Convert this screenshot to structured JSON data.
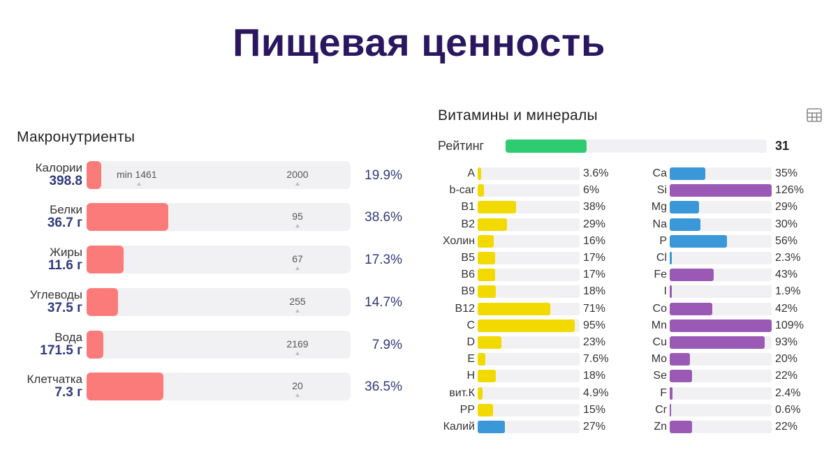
{
  "page": {
    "title": "Пищевая ценность"
  },
  "colors": {
    "title": "#2a1760",
    "macro_fill": "#fb7b7b",
    "track": "#f1f1f3",
    "rating": "#2ecc71",
    "vitamin": "#f2d900",
    "mineral_blue": "#3a97d8",
    "mineral_purple": "#9b59b6",
    "value_text": "#2f3a7a"
  },
  "macros": {
    "title": "Макронутриенты",
    "items": [
      {
        "name": "Калории",
        "value": "398.8",
        "min_label": "min 1461",
        "target": "2000",
        "percent": "19.9%",
        "fraction": 0.055
      },
      {
        "name": "Белки",
        "value": "36.7 г",
        "target": "95",
        "percent": "38.6%",
        "fraction": 0.31
      },
      {
        "name": "Жиры",
        "value": "11.6 г",
        "target": "67",
        "percent": "17.3%",
        "fraction": 0.14
      },
      {
        "name": "Углеводы",
        "value": "37.5 г",
        "target": "255",
        "percent": "14.7%",
        "fraction": 0.12
      },
      {
        "name": "Вода",
        "value": "171.5 г",
        "target": "2169",
        "percent": "7.9%",
        "fraction": 0.063
      },
      {
        "name": "Клетчатка",
        "value": "7.3 г",
        "target": "20",
        "percent": "36.5%",
        "fraction": 0.292
      }
    ]
  },
  "vitamins_minerals": {
    "title": "Витамины и минералы",
    "table_icon": "table-icon",
    "rating": {
      "label": "Рейтинг",
      "value": "31",
      "fraction": 0.31
    },
    "vitamins": [
      {
        "name": "A",
        "percent": "3.6%",
        "fraction": 0.036,
        "color": "#f2d900"
      },
      {
        "name": "b-car",
        "percent": "6%",
        "fraction": 0.06,
        "color": "#f2d900"
      },
      {
        "name": "B1",
        "percent": "38%",
        "fraction": 0.38,
        "color": "#f2d900"
      },
      {
        "name": "B2",
        "percent": "29%",
        "fraction": 0.29,
        "color": "#f2d900"
      },
      {
        "name": "Холин",
        "percent": "16%",
        "fraction": 0.16,
        "color": "#f2d900"
      },
      {
        "name": "B5",
        "percent": "17%",
        "fraction": 0.17,
        "color": "#f2d900"
      },
      {
        "name": "B6",
        "percent": "17%",
        "fraction": 0.17,
        "color": "#f2d900"
      },
      {
        "name": "B9",
        "percent": "18%",
        "fraction": 0.18,
        "color": "#f2d900"
      },
      {
        "name": "B12",
        "percent": "71%",
        "fraction": 0.71,
        "color": "#f2d900"
      },
      {
        "name": "C",
        "percent": "95%",
        "fraction": 0.95,
        "color": "#f2d900"
      },
      {
        "name": "D",
        "percent": "23%",
        "fraction": 0.23,
        "color": "#f2d900"
      },
      {
        "name": "E",
        "percent": "7.6%",
        "fraction": 0.076,
        "color": "#f2d900"
      },
      {
        "name": "H",
        "percent": "18%",
        "fraction": 0.18,
        "color": "#f2d900"
      },
      {
        "name": "вит.К",
        "percent": "4.9%",
        "fraction": 0.049,
        "color": "#f2d900"
      },
      {
        "name": "PP",
        "percent": "15%",
        "fraction": 0.15,
        "color": "#f2d900"
      },
      {
        "name": "Калий",
        "percent": "27%",
        "fraction": 0.27,
        "color": "#3a97d8"
      }
    ],
    "minerals": [
      {
        "name": "Ca",
        "percent": "35%",
        "fraction": 0.35,
        "color": "#3a97d8"
      },
      {
        "name": "Si",
        "percent": "126%",
        "fraction": 1.0,
        "color": "#9b59b6"
      },
      {
        "name": "Mg",
        "percent": "29%",
        "fraction": 0.29,
        "color": "#3a97d8"
      },
      {
        "name": "Na",
        "percent": "30%",
        "fraction": 0.3,
        "color": "#3a97d8"
      },
      {
        "name": "P",
        "percent": "56%",
        "fraction": 0.56,
        "color": "#3a97d8"
      },
      {
        "name": "Cl",
        "percent": "2.3%",
        "fraction": 0.023,
        "color": "#3a97d8"
      },
      {
        "name": "Fe",
        "percent": "43%",
        "fraction": 0.43,
        "color": "#9b59b6"
      },
      {
        "name": "I",
        "percent": "1.9%",
        "fraction": 0.019,
        "color": "#9b59b6"
      },
      {
        "name": "Co",
        "percent": "42%",
        "fraction": 0.42,
        "color": "#9b59b6"
      },
      {
        "name": "Mn",
        "percent": "109%",
        "fraction": 1.0,
        "color": "#9b59b6"
      },
      {
        "name": "Cu",
        "percent": "93%",
        "fraction": 0.93,
        "color": "#9b59b6"
      },
      {
        "name": "Mo",
        "percent": "20%",
        "fraction": 0.2,
        "color": "#9b59b6"
      },
      {
        "name": "Se",
        "percent": "22%",
        "fraction": 0.22,
        "color": "#9b59b6"
      },
      {
        "name": "F",
        "percent": "2.4%",
        "fraction": 0.024,
        "color": "#9b59b6"
      },
      {
        "name": "Cr",
        "percent": "0.6%",
        "fraction": 0.006,
        "color": "#9b59b6"
      },
      {
        "name": "Zn",
        "percent": "22%",
        "fraction": 0.22,
        "color": "#9b59b6"
      }
    ]
  }
}
